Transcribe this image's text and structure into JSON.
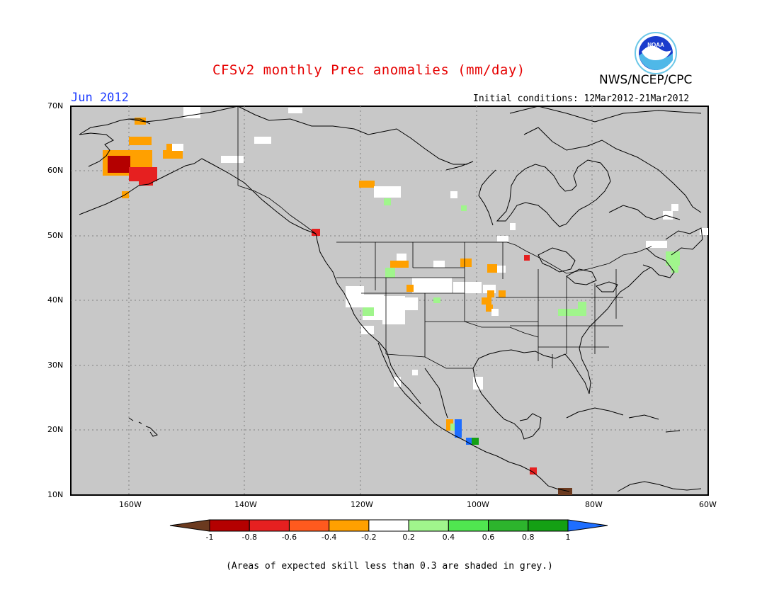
{
  "header": {
    "title": "CFSv2 monthly Prec anomalies (mm/day)",
    "agency": "NWS/NCEP/CPC",
    "month": "Jun 2012",
    "initial_conditions": "Initial conditions: 12Mar2012-21Mar2012",
    "logo_text": "NOAA"
  },
  "map": {
    "lat_labels": [
      "70N",
      "60N",
      "50N",
      "40N",
      "30N",
      "20N",
      "10N"
    ],
    "lon_labels": [
      "160W",
      "140W",
      "120W",
      "100W",
      "80W",
      "60W"
    ],
    "background_color": "#c8c8c8"
  },
  "legend": {
    "ticks": [
      "-1",
      "-0.8",
      "-0.6",
      "-0.4",
      "-0.2",
      "0.2",
      "0.4",
      "0.6",
      "0.8",
      "1"
    ],
    "colors": [
      "#6b3a1f",
      "#b40000",
      "#e62020",
      "#ff5a1e",
      "#ffa000",
      "#ffffff",
      "#a0f58c",
      "#50e650",
      "#2db42d",
      "#14a014",
      "#1e6eff"
    ]
  },
  "footer": {
    "note": "(Areas of expected skill less than 0.3 are shaded in grey.)"
  }
}
